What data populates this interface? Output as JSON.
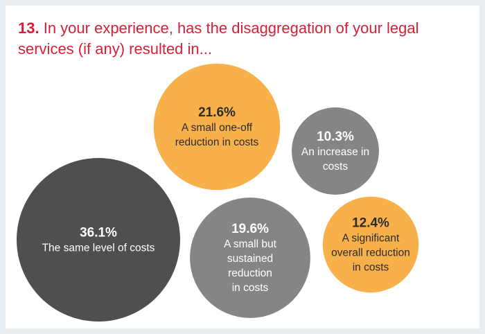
{
  "title": {
    "number": "13.",
    "line1": "In your experience, has the disaggregation of your legal",
    "line2": "services (if any) resulted in..."
  },
  "colors": {
    "title": "#d71f35",
    "orange": "#f8b04b",
    "dark_gray": "#4f4f50",
    "mid_gray": "#858587",
    "bubble_text_light": "#ffffff",
    "bubble_text_dark": "#2b2b2b"
  },
  "chart_data": {
    "type": "bubble",
    "title": "In your experience, has the disaggregation of your legal services (if any) resulted in...",
    "unit": "%",
    "items": [
      {
        "label": "The same level of costs",
        "value": 36.1,
        "value_text": "36.1%",
        "label_lines": [
          "The same level of costs"
        ],
        "color": "dark_gray"
      },
      {
        "label": "A small one-off reduction in costs",
        "value": 21.6,
        "value_text": "21.6%",
        "label_lines": [
          "A small one-off",
          "reduction in costs"
        ],
        "color": "orange"
      },
      {
        "label": "A small but sustained reduction in costs",
        "value": 19.6,
        "value_text": "19.6%",
        "label_lines": [
          "A small but",
          "sustained",
          "reduction",
          "in costs"
        ],
        "color": "mid_gray"
      },
      {
        "label": "A significant overall reduction in costs",
        "value": 12.4,
        "value_text": "12.4%",
        "label_lines": [
          "A significant",
          "overall reduction",
          "in costs"
        ],
        "color": "orange"
      },
      {
        "label": "An increase in costs",
        "value": 10.3,
        "value_text": "10.3%",
        "label_lines": [
          "An increase in",
          "costs"
        ],
        "color": "mid_gray"
      }
    ]
  }
}
